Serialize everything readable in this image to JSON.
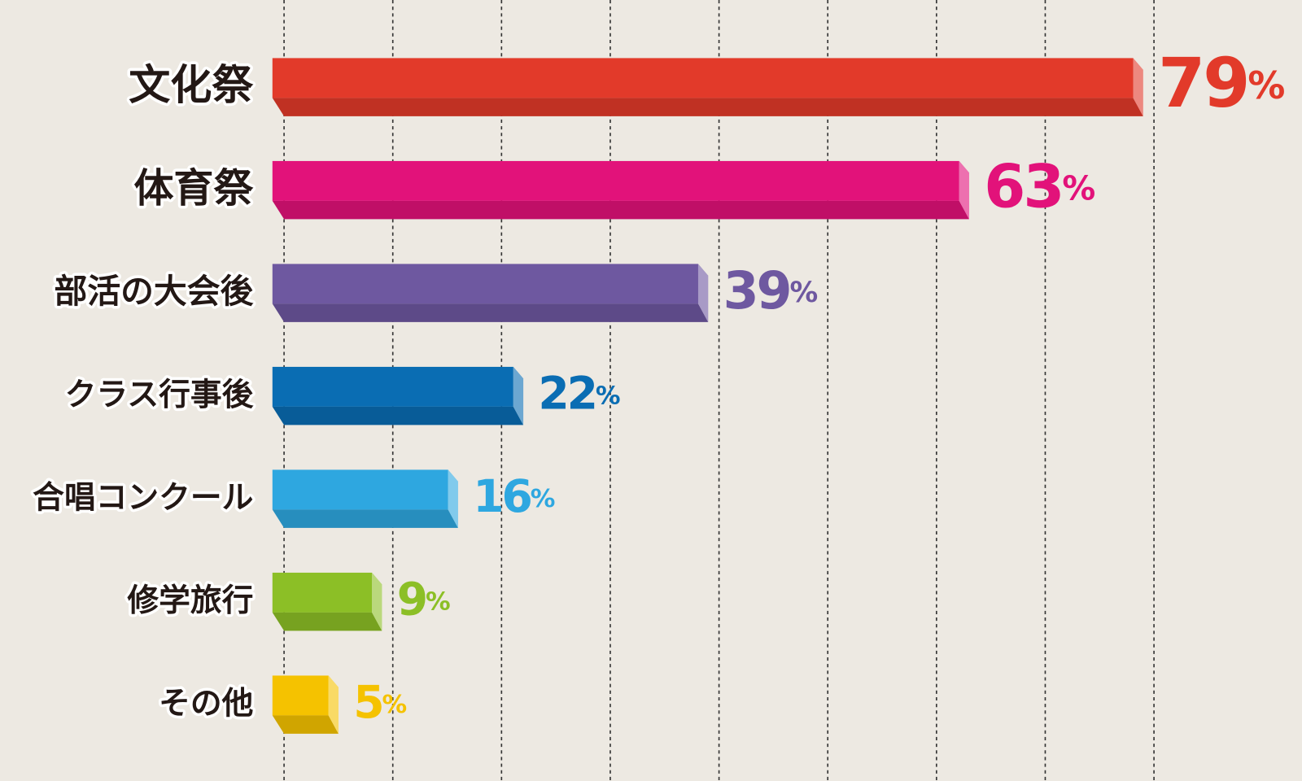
{
  "chart_data": {
    "type": "bar",
    "orientation": "horizontal",
    "categories": [
      "文化祭",
      "体育祭",
      "部活の大会後",
      "クラス行事後",
      "合唱コンクール",
      "修学旅行",
      "その他"
    ],
    "values": [
      79,
      63,
      39,
      22,
      16,
      9,
      5
    ],
    "value_labels": [
      "79%",
      "63%",
      "39%",
      "22%",
      "16%",
      "9%",
      "5%"
    ],
    "colors": [
      "#e23a2a",
      "#e2127a",
      "#6e58a0",
      "#0a6db3",
      "#2ea7e0",
      "#8cbf26",
      "#f5c200"
    ],
    "xlim": [
      0,
      93.6
    ],
    "xticks": [
      0,
      10,
      20,
      30,
      40,
      50,
      60,
      70,
      80
    ],
    "grid": true
  }
}
